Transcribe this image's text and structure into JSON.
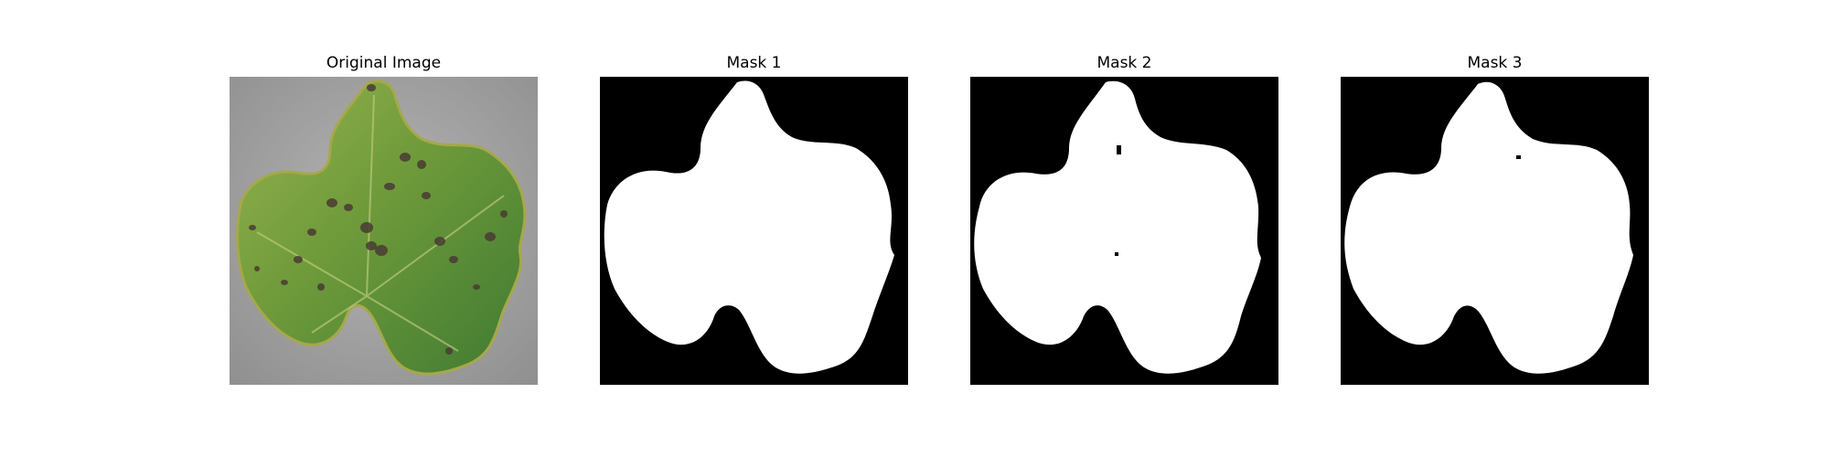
{
  "panels": [
    {
      "title": "Original Image",
      "kind": "photo"
    },
    {
      "title": "Mask 1",
      "kind": "mask"
    },
    {
      "title": "Mask 2",
      "kind": "mask"
    },
    {
      "title": "Mask 3",
      "kind": "mask"
    }
  ],
  "colors": {
    "background": "#a9a9a9",
    "leaf": "#6f9a3c",
    "mask_bg": "#000000",
    "mask_fg": "#ffffff"
  }
}
